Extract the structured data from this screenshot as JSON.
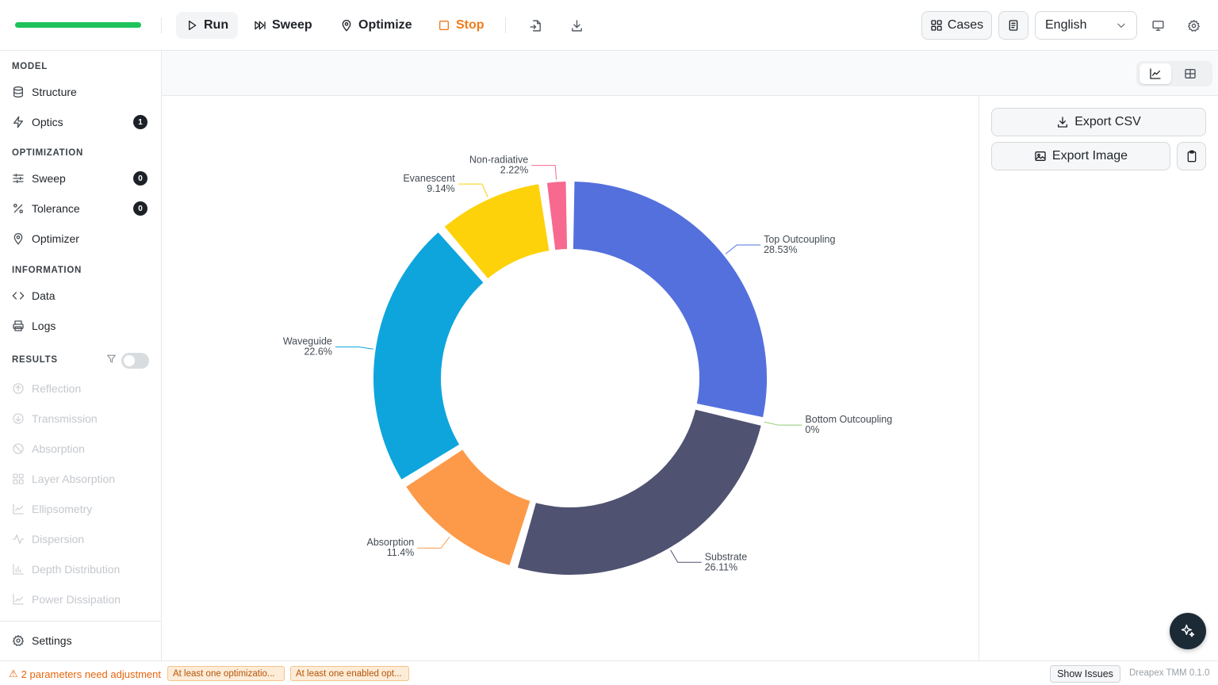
{
  "toolbar": {
    "progress": 1.0,
    "run_label": "Run",
    "sweep_label": "Sweep",
    "optimize_label": "Optimize",
    "stop_label": "Stop",
    "cases_label": "Cases",
    "language": "English"
  },
  "sidebar": {
    "sections": {
      "model": "MODEL",
      "optimization": "OPTIMIZATION",
      "information": "INFORMATION",
      "results": "RESULTS"
    },
    "model_items": [
      {
        "label": "Structure",
        "icon": "database-icon"
      },
      {
        "label": "Optics",
        "icon": "lightning-icon",
        "badge": "1"
      }
    ],
    "optimization_items": [
      {
        "label": "Sweep",
        "icon": "sliders-icon",
        "badge": "0"
      },
      {
        "label": "Tolerance",
        "icon": "percent-icon",
        "badge": "0"
      },
      {
        "label": "Optimizer",
        "icon": "map-pin-icon"
      }
    ],
    "information_items": [
      {
        "label": "Data",
        "icon": "code-icon"
      },
      {
        "label": "Logs",
        "icon": "printer-icon"
      }
    ],
    "results_items": [
      {
        "label": "Reflection",
        "icon": "arrow-up-circle-icon"
      },
      {
        "label": "Transmission",
        "icon": "arrow-down-circle-icon"
      },
      {
        "label": "Absorption",
        "icon": "ban-icon"
      },
      {
        "label": "Layer Absorption",
        "icon": "grid-icon"
      },
      {
        "label": "Ellipsometry",
        "icon": "line-chart-icon"
      },
      {
        "label": "Dispersion",
        "icon": "activity-icon"
      },
      {
        "label": "Depth Distribution",
        "icon": "bar-chart-icon"
      },
      {
        "label": "Power Dissipation",
        "icon": "area-chart-icon"
      }
    ],
    "results_filter_enabled": false,
    "settings_label": "Settings"
  },
  "right_panel": {
    "export_csv": "Export CSV",
    "export_image": "Export Image"
  },
  "status": {
    "warning": "2 parameters need adjustment",
    "chips": [
      "At least one optimizatio...",
      "At least one enabled opt..."
    ],
    "show_issues": "Show Issues",
    "version": "Dreapex TMM 0.1.0"
  },
  "colors": {
    "top_outcoupling": "#5470dd",
    "bottom_outcoupling": "#91cc75",
    "substrate": "#4f5270",
    "absorption": "#fc9a4a",
    "waveguide": "#0ea5dd",
    "evanescent": "#fdd20a",
    "non_radiative": "#f7698f",
    "accent_stop": "#f07b1a",
    "progress": "#1ec25a"
  },
  "chart_data": {
    "type": "pie",
    "variant": "donut",
    "series": [
      {
        "name": "Top Outcoupling",
        "value": 28.53,
        "label": "28.53%"
      },
      {
        "name": "Bottom Outcoupling",
        "value": 0,
        "label": "0%"
      },
      {
        "name": "Substrate",
        "value": 26.11,
        "label": "26.11%"
      },
      {
        "name": "Absorption",
        "value": 11.4,
        "label": "11.4%"
      },
      {
        "name": "Waveguide",
        "value": 22.6,
        "label": "22.6%"
      },
      {
        "name": "Evanescent",
        "value": 9.14,
        "label": "9.14%"
      },
      {
        "name": "Non-radiative",
        "value": 2.22,
        "label": "2.22%"
      }
    ]
  }
}
